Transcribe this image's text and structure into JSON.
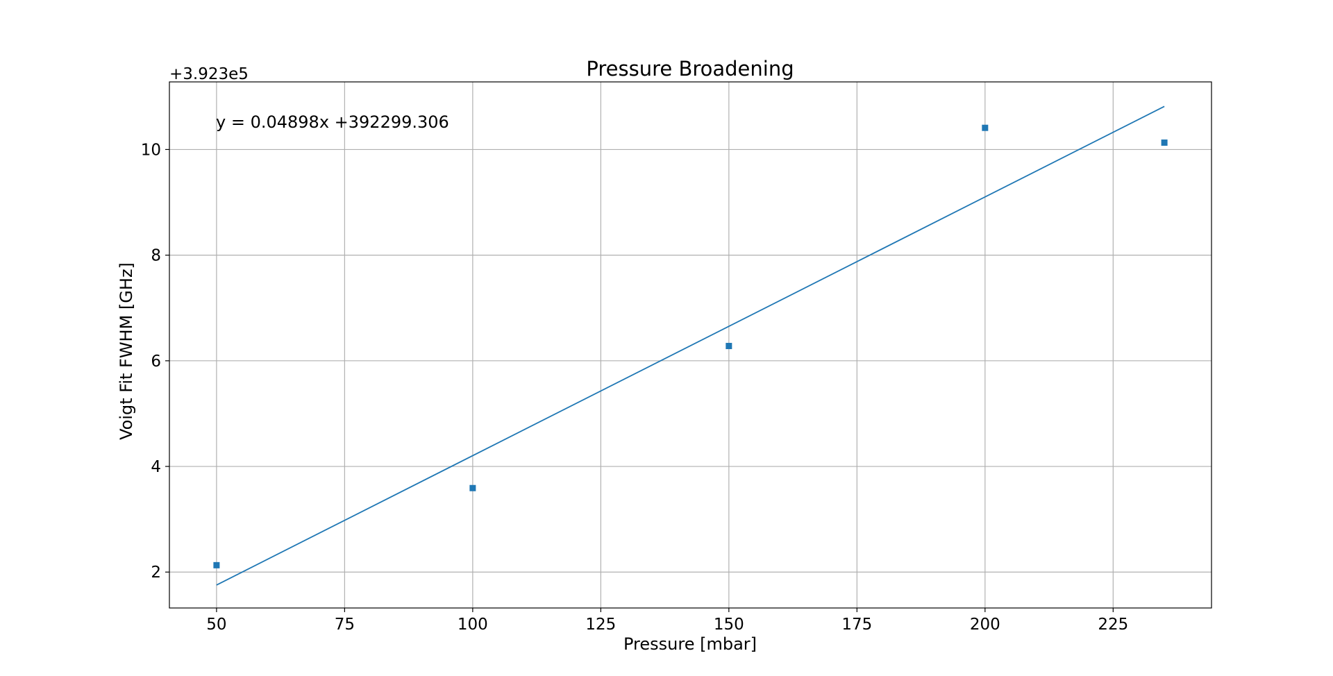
{
  "chart_data": {
    "type": "scatter",
    "title": "Pressure Broadening",
    "xlabel": "Pressure [mbar]",
    "ylabel": "Voigt Fit FWHM [GHz]",
    "y_offset_label": "+3.923e5",
    "y_offset": 392300,
    "annotation": "y = 0.04898x +392299.306",
    "xlim": [
      40.8,
      244.2
    ],
    "ylim": [
      1.32,
      11.28
    ],
    "x_ticks": [
      50,
      75,
      100,
      125,
      150,
      175,
      200,
      225
    ],
    "y_ticks": [
      2,
      4,
      6,
      8,
      10
    ],
    "grid": true,
    "legend": "none",
    "colors": {
      "series": "#1f77b4",
      "grid": "#b0b0b0",
      "axes": "#000000"
    },
    "series": [
      {
        "kind": "scatter",
        "marker": "square",
        "x": [
          50,
          100,
          150,
          200,
          235
        ],
        "y": [
          2.13,
          3.59,
          6.28,
          10.41,
          10.13
        ]
      },
      {
        "kind": "line",
        "slope": 0.04898,
        "x": [
          50,
          235
        ],
        "y": [
          1.755,
          10.816
        ]
      }
    ]
  }
}
